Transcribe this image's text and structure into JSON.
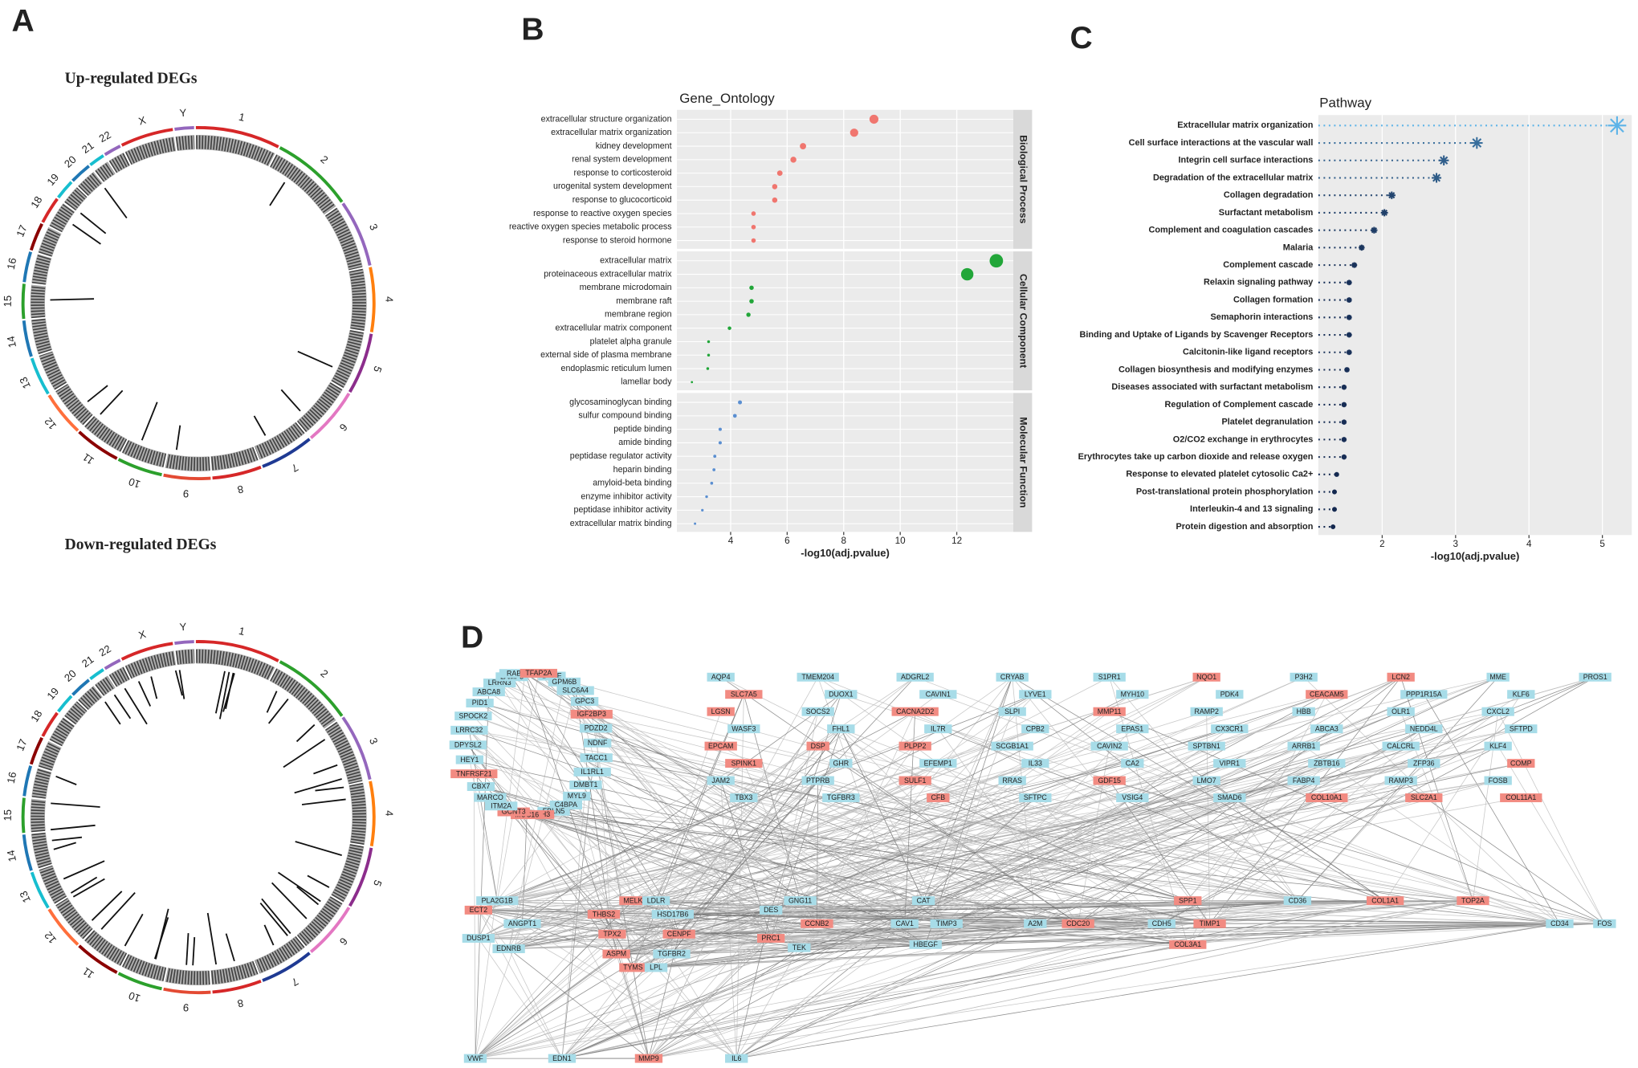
{
  "panel_labels": [
    "A",
    "B",
    "C",
    "D"
  ],
  "circos": [
    {
      "title": "Up-regulated DEGs",
      "chromosomes": [
        "1",
        "2",
        "3",
        "4",
        "5",
        "6",
        "7",
        "8",
        "9",
        "10",
        "11",
        "12",
        "13",
        "14",
        "15",
        "16",
        "17",
        "18",
        "19",
        "20",
        "21",
        "22",
        "X",
        "Y"
      ]
    },
    {
      "title": "Down-regulated DEGs",
      "chromosomes": [
        "1",
        "2",
        "3",
        "4",
        "5",
        "6",
        "7",
        "8",
        "9",
        "10",
        "11",
        "12",
        "13",
        "14",
        "15",
        "16",
        "17",
        "18",
        "19",
        "20",
        "21",
        "22",
        "X",
        "Y"
      ]
    }
  ],
  "chart_data": [
    {
      "type": "dot",
      "title": "Gene_Ontology",
      "xlabel": "-log10(adj.pvalue)",
      "xlim": [
        2.1,
        14
      ],
      "xticks": [
        4,
        6,
        8,
        10,
        12
      ],
      "grid": true,
      "series": [
        {
          "name": "Biological Process",
          "color": "#f0766f",
          "categories": [
            "extracellular structure organization",
            "extracellular matrix organization",
            "kidney development",
            "renal system development",
            "response to corticosteroid",
            "urogenital system development",
            "response to glucocorticoid",
            "response to reactive oxygen species",
            "reactive oxygen species metabolic process",
            "response to steroid hormone"
          ],
          "values": [
            9.07,
            8.37,
            6.56,
            6.22,
            5.74,
            5.56,
            5.56,
            4.81,
            4.81,
            4.81
          ]
        },
        {
          "name": "Cellular Component",
          "color": "#22a639",
          "categories": [
            "extracellular matrix",
            "proteinaceous extracellular matrix",
            "membrane microdomain",
            "membrane raft",
            "membrane region",
            "extracellular matrix component",
            "platelet alpha granule",
            "external side of plasma membrane",
            "endoplasmic reticulum lumen",
            "lamellar body"
          ],
          "values": [
            13.4,
            12.37,
            4.74,
            4.74,
            4.63,
            3.96,
            3.22,
            3.22,
            3.19,
            2.63
          ]
        },
        {
          "name": "Molecular Function",
          "color": "#5b8fd1",
          "categories": [
            "glycosaminoglycan binding",
            "sulfur compound binding",
            "peptide binding",
            "amide binding",
            "peptidase regulator activity",
            "heparin binding",
            "amyloid-beta binding",
            "enzyme inhibitor activity",
            "peptidase inhibitor activity",
            "extracellular matrix binding"
          ],
          "values": [
            4.33,
            4.15,
            3.63,
            3.63,
            3.44,
            3.41,
            3.33,
            3.15,
            3.0,
            2.74
          ]
        }
      ]
    },
    {
      "type": "lollipop",
      "title": "Pathway",
      "xlabel": "-log10(adj.pvalue)",
      "xlim": [
        1.13,
        5.4
      ],
      "xticks": [
        2,
        3,
        4,
        5
      ],
      "grid": true,
      "color_low": "#14284f",
      "color_high": "#5cb3e8",
      "categories": [
        "Extracellular matrix organization",
        "Cell surface interactions at the vascular wall",
        "Integrin cell surface interactions",
        "Degradation of the extracellular matrix",
        "Collagen degradation",
        "Surfactant metabolism",
        "Complement and coagulation cascades",
        "Malaria",
        "Complement cascade",
        "Relaxin signaling pathway",
        "Collagen formation",
        "Semaphorin interactions",
        "Binding and Uptake of Ligands by Scavenger Receptors",
        "Calcitonin-like ligand receptors",
        "Collagen biosynthesis and modifying enzymes",
        "Diseases associated with surfactant metabolism",
        "Regulation of Complement cascade",
        "Platelet degranulation",
        "O2/CO2 exchange in erythrocytes",
        "Erythrocytes take up carbon dioxide and release oxygen",
        "Response to elevated platelet cytosolic Ca2+",
        "Post-translational protein phosphorylation",
        "Interleukin-4 and 13 signaling",
        "Protein digestion and absorption"
      ],
      "values": [
        5.2,
        3.29,
        2.84,
        2.74,
        2.13,
        2.03,
        1.89,
        1.72,
        1.62,
        1.55,
        1.55,
        1.55,
        1.55,
        1.55,
        1.52,
        1.48,
        1.48,
        1.48,
        1.48,
        1.48,
        1.38,
        1.35,
        1.35,
        1.33
      ]
    }
  ],
  "network": {
    "up_color": "#f28b82",
    "down_color": "#a7dce8",
    "ring_nodes": [
      {
        "label": "BCHE",
        "up": false
      },
      {
        "label": "GPM6B",
        "up": false
      },
      {
        "label": "SLC6A4",
        "up": false
      },
      {
        "label": "GPC3",
        "up": false
      },
      {
        "label": "IGF2BP3",
        "up": true
      },
      {
        "label": "PDZD2",
        "up": false
      },
      {
        "label": "NDNF",
        "up": false
      },
      {
        "label": "TACC1",
        "up": false
      },
      {
        "label": "IL1RL1",
        "up": false
      },
      {
        "label": "DMBT1",
        "up": false
      },
      {
        "label": "MYL9",
        "up": false
      },
      {
        "label": "C4BPA",
        "up": false
      },
      {
        "label": "FBLN5",
        "up": false
      },
      {
        "label": "CDH3",
        "up": true
      },
      {
        "label": "MUC16",
        "up": true
      },
      {
        "label": "GCNT3",
        "up": true
      },
      {
        "label": "ITM2A",
        "up": false
      },
      {
        "label": "MARCO",
        "up": false
      },
      {
        "label": "CBX7",
        "up": false
      },
      {
        "label": "TNFRSF21",
        "up": true
      },
      {
        "label": "HEY1",
        "up": false
      },
      {
        "label": "DPYSL2",
        "up": false
      },
      {
        "label": "LRRC32",
        "up": false
      },
      {
        "label": "SPOCK2",
        "up": false
      },
      {
        "label": "PID1",
        "up": false
      },
      {
        "label": "ABCA8",
        "up": false
      },
      {
        "label": "LRRN3",
        "up": false
      },
      {
        "label": "LAMP3",
        "up": false
      },
      {
        "label": "RAB11FIP1",
        "up": false
      },
      {
        "label": "TFAP2A",
        "up": true
      }
    ],
    "upper_nodes": [
      {
        "label": "AQP4",
        "up": false
      },
      {
        "label": "SLC7A5",
        "up": true
      },
      {
        "label": "LGSN",
        "up": true
      },
      {
        "label": "WASF3",
        "up": false
      },
      {
        "label": "EPCAM",
        "up": true
      },
      {
        "label": "SPINK1",
        "up": true
      },
      {
        "label": "JAM2",
        "up": false
      },
      {
        "label": "TBX3",
        "up": false
      },
      {
        "label": "TMEM204",
        "up": false
      },
      {
        "label": "DUOX1",
        "up": false
      },
      {
        "label": "SOCS2",
        "up": false
      },
      {
        "label": "FHL1",
        "up": false
      },
      {
        "label": "DSP",
        "up": true
      },
      {
        "label": "GHR",
        "up": false
      },
      {
        "label": "PTPRB",
        "up": false
      },
      {
        "label": "TGFBR3",
        "up": false
      },
      {
        "label": "ADGRL2",
        "up": false
      },
      {
        "label": "CAVIN1",
        "up": false
      },
      {
        "label": "CACNA2D2",
        "up": true
      },
      {
        "label": "IL7R",
        "up": false
      },
      {
        "label": "PLPP2",
        "up": true
      },
      {
        "label": "EFEMP1",
        "up": false
      },
      {
        "label": "SULF1",
        "up": true
      },
      {
        "label": "CFB",
        "up": true
      },
      {
        "label": "CRYAB",
        "up": false
      },
      {
        "label": "LYVE1",
        "up": false
      },
      {
        "label": "SLPI",
        "up": false
      },
      {
        "label": "CPB2",
        "up": false
      },
      {
        "label": "SCGB1A1",
        "up": false
      },
      {
        "label": "IL33",
        "up": false
      },
      {
        "label": "RRAS",
        "up": false
      },
      {
        "label": "SFTPC",
        "up": false
      },
      {
        "label": "S1PR1",
        "up": false
      },
      {
        "label": "MYH10",
        "up": false
      },
      {
        "label": "MMP11",
        "up": true
      },
      {
        "label": "EPAS1",
        "up": false
      },
      {
        "label": "CAVIN2",
        "up": false
      },
      {
        "label": "CA2",
        "up": false
      },
      {
        "label": "GDF15",
        "up": true
      },
      {
        "label": "VSIG4",
        "up": false
      },
      {
        "label": "NQO1",
        "up": true
      },
      {
        "label": "PDK4",
        "up": false
      },
      {
        "label": "RAMP2",
        "up": false
      },
      {
        "label": "CX3CR1",
        "up": false
      },
      {
        "label": "SPTBN1",
        "up": false
      },
      {
        "label": "VIPR1",
        "up": false
      },
      {
        "label": "LMO7",
        "up": false
      },
      {
        "label": "SMAD6",
        "up": false
      },
      {
        "label": "P3H2",
        "up": false
      },
      {
        "label": "CEACAM5",
        "up": true
      },
      {
        "label": "HBB",
        "up": false
      },
      {
        "label": "ABCA3",
        "up": false
      },
      {
        "label": "ARRB1",
        "up": false
      },
      {
        "label": "ZBTB16",
        "up": false
      },
      {
        "label": "FABP4",
        "up": false
      },
      {
        "label": "COL10A1",
        "up": true
      },
      {
        "label": "LCN2",
        "up": true
      },
      {
        "label": "PPP1R15A",
        "up": false
      },
      {
        "label": "OLR1",
        "up": false
      },
      {
        "label": "NEDD4L",
        "up": false
      },
      {
        "label": "CALCRL",
        "up": false
      },
      {
        "label": "ZFP36",
        "up": false
      },
      {
        "label": "RAMP3",
        "up": false
      },
      {
        "label": "SLC2A1",
        "up": true
      },
      {
        "label": "MME",
        "up": false
      },
      {
        "label": "KLF6",
        "up": false
      },
      {
        "label": "CXCL2",
        "up": false
      },
      {
        "label": "SFTPD",
        "up": false
      },
      {
        "label": "KLF4",
        "up": false
      },
      {
        "label": "COMP",
        "up": true
      },
      {
        "label": "FOSB",
        "up": false
      },
      {
        "label": "COL11A1",
        "up": true
      },
      {
        "label": "PROS1",
        "up": false
      }
    ],
    "lower_nodes": [
      {
        "label": "PLA2G1B",
        "up": false
      },
      {
        "label": "ECT2",
        "up": true
      },
      {
        "label": "ANGPT1",
        "up": false
      },
      {
        "label": "DUSP1",
        "up": false
      },
      {
        "label": "EDNRB",
        "up": false
      },
      {
        "label": "MELK",
        "up": true
      },
      {
        "label": "THBS2",
        "up": true
      },
      {
        "label": "TPX2",
        "up": true
      },
      {
        "label": "ASPM",
        "up": true
      },
      {
        "label": "TYMS",
        "up": true
      },
      {
        "label": "LDLR",
        "up": false
      },
      {
        "label": "HSD17B6",
        "up": false
      },
      {
        "label": "CENPF",
        "up": true
      },
      {
        "label": "TGFBR2",
        "up": false
      },
      {
        "label": "LPL",
        "up": false
      },
      {
        "label": "DES",
        "up": false
      },
      {
        "label": "PRC1",
        "up": true
      },
      {
        "label": "TEK",
        "up": false
      },
      {
        "label": "GNG11",
        "up": false
      },
      {
        "label": "CCNB2",
        "up": true
      },
      {
        "label": "CAT",
        "up": false
      },
      {
        "label": "CAV1",
        "up": false
      },
      {
        "label": "TIMP3",
        "up": false
      },
      {
        "label": "HBEGF",
        "up": false
      },
      {
        "label": "A2M",
        "up": false
      },
      {
        "label": "CDC20",
        "up": true
      },
      {
        "label": "SPP1",
        "up": true
      },
      {
        "label": "CD36",
        "up": false
      },
      {
        "label": "CDH5",
        "up": false
      },
      {
        "label": "TIMP1",
        "up": true
      },
      {
        "label": "COL3A1",
        "up": true
      },
      {
        "label": "COL1A1",
        "up": true
      },
      {
        "label": "TOP2A",
        "up": true
      },
      {
        "label": "CD34",
        "up": false
      },
      {
        "label": "FOS",
        "up": false
      },
      {
        "label": "VWF",
        "up": false
      },
      {
        "label": "EDN1",
        "up": false
      },
      {
        "label": "MMP9",
        "up": true
      },
      {
        "label": "IL6",
        "up": false
      }
    ]
  }
}
